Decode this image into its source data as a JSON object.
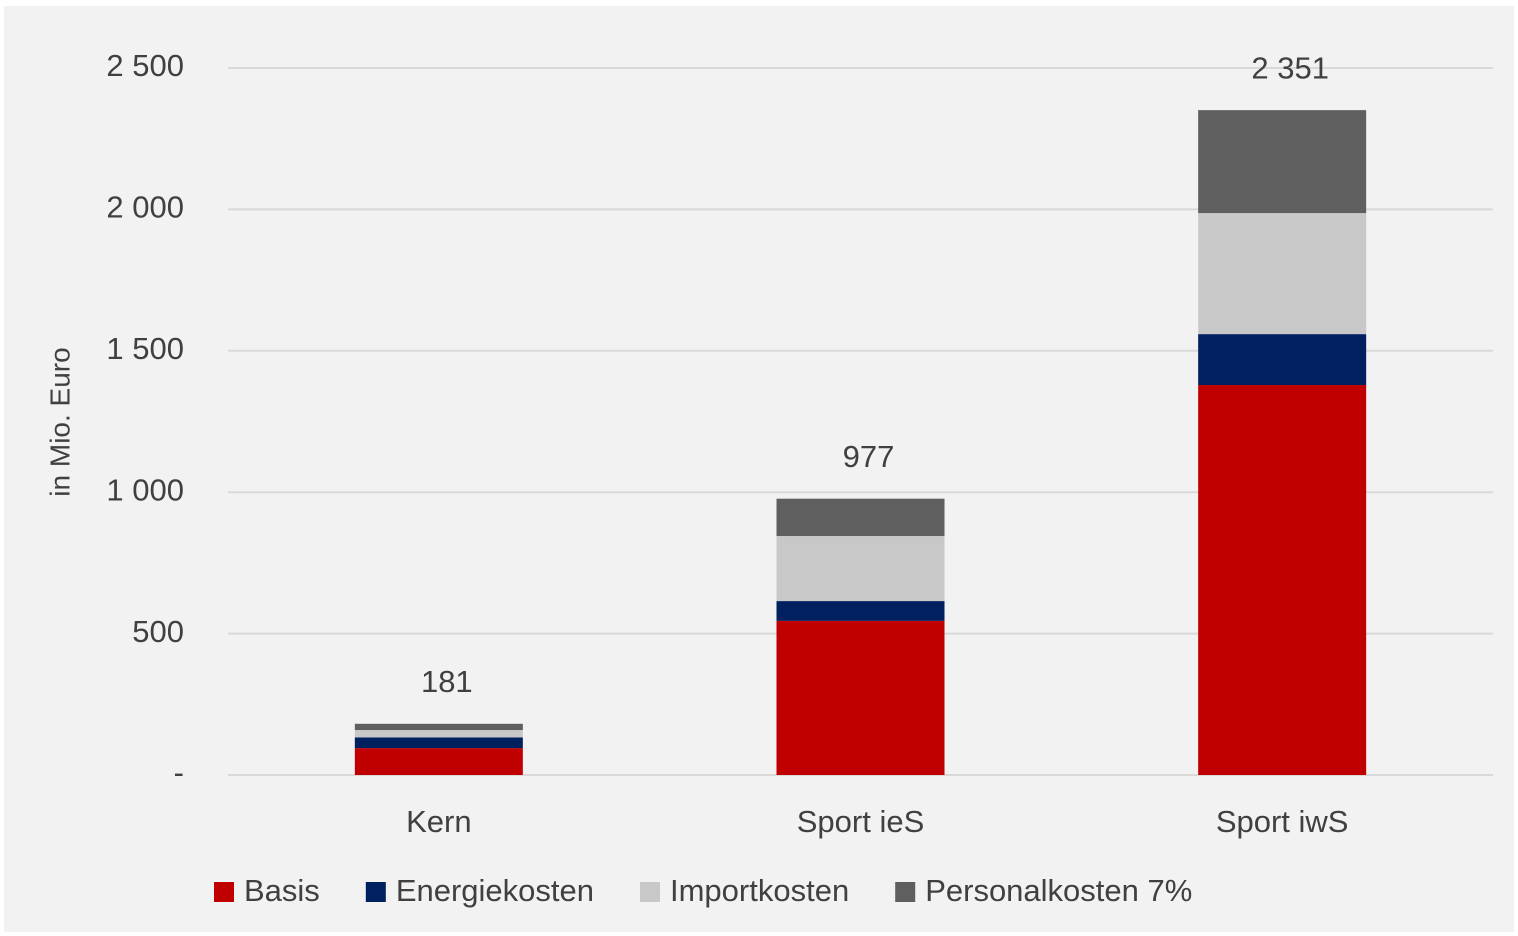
{
  "chart_data": {
    "type": "stacked_bar",
    "y_label": "in Mio. Euro",
    "categories": [
      "Kern",
      "Sport ieS",
      "Sport iwS"
    ],
    "series": [
      {
        "name": "Basis",
        "color": "#c00000",
        "values": [
          95,
          545,
          1379
        ]
      },
      {
        "name": "Energiekosten",
        "color": "#002060",
        "values": [
          38,
          70,
          180
        ]
      },
      {
        "name": "Importkosten",
        "color": "#c8c8c8",
        "values": [
          26,
          230,
          428
        ]
      },
      {
        "name": "Personalkosten 7%",
        "color": "#5f5f5f",
        "values": [
          22,
          132,
          364
        ]
      }
    ],
    "totals": {
      "values": [
        181,
        977,
        2351
      ],
      "value_labels": [
        "181",
        "977",
        "2 351"
      ]
    },
    "ylim": [
      0,
      2500
    ],
    "yticks": [
      {
        "value": 0,
        "label": "-"
      },
      500,
      {
        "value": 1000,
        "label": "1 000"
      },
      {
        "value": 1500,
        "label": "1 500"
      },
      {
        "value": 2000,
        "label": "2 000"
      },
      {
        "value": 2500,
        "label": "2 500"
      }
    ],
    "grid": true,
    "legend": "bottom"
  }
}
